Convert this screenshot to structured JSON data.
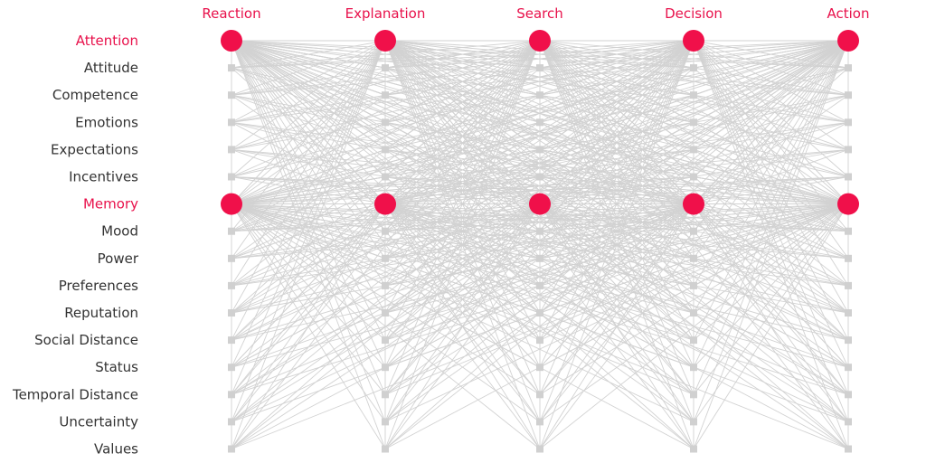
{
  "columns": [
    "Reaction",
    "Explanation",
    "Search",
    "Decision",
    "Action"
  ],
  "rows": [
    "Attention",
    "Attitude",
    "Competence",
    "Emotions",
    "Expectations",
    "Incentives",
    "Memory",
    "Mood",
    "Power",
    "Preferences",
    "Reputation",
    "Social Distance",
    "Status",
    "Temporal Distance",
    "Uncertainty",
    "Values"
  ],
  "highlighted_rows": [
    "Attention",
    "Memory"
  ],
  "colors": {
    "highlight": "#e8114b",
    "node_highlight": "#f0104a",
    "node_default": "#d0d0d0",
    "edge": "#d2d2d2",
    "text": "#333333"
  }
}
